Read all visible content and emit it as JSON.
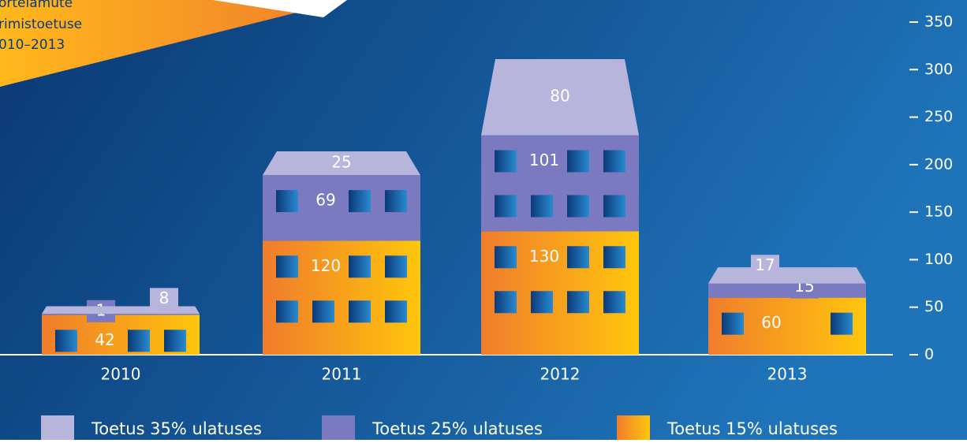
{
  "chart_data": {
    "type": "stacked-bar",
    "title_lines": [
      "ortelamute",
      "rimistoetuse",
      "010–2013"
    ],
    "categories": [
      "2010",
      "2011",
      "2012",
      "2013"
    ],
    "series": [
      {
        "name": "Toetus 15% ulatuses",
        "color": "#f7921e",
        "values": [
          42,
          120,
          130,
          60
        ]
      },
      {
        "name": "Toetus 25% ulatuses",
        "color": "#7b79bf",
        "values": [
          1,
          69,
          101,
          15
        ]
      },
      {
        "name": "Toetus 35% ulatuses",
        "color": "#b8b5dc",
        "values": [
          8,
          25,
          80,
          17
        ]
      }
    ],
    "ylim": [
      0,
      350
    ],
    "yticks": [
      0,
      50,
      100,
      150,
      200,
      250,
      300,
      350
    ]
  }
}
